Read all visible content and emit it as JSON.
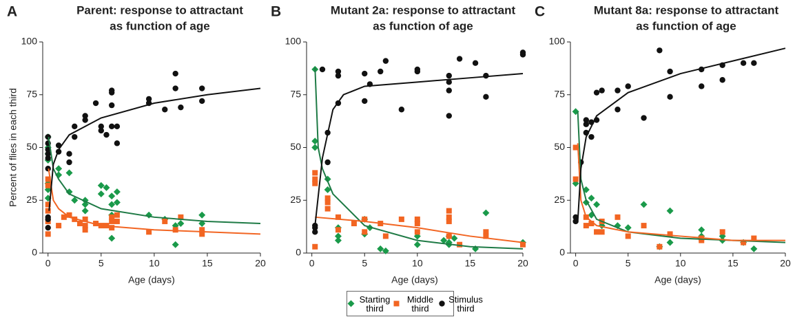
{
  "chart_data": [
    {
      "type": "scatter",
      "panel_label": "A",
      "title": [
        "Parent: response to attractant",
        "as function of age"
      ],
      "xlabel": "Age (days)",
      "ylabel": "Percent of flies in each third",
      "xlim": [
        -0.5,
        20
      ],
      "xticks": [
        0,
        5,
        10,
        15,
        20
      ],
      "ylim": [
        0,
        100
      ],
      "yticks": [
        0,
        25,
        50,
        75,
        100
      ],
      "series": [
        {
          "name": "Starting third",
          "color": "#1a9a4a",
          "marker": "diamond",
          "x": [
            0,
            0,
            0,
            0,
            0,
            0,
            0,
            1,
            1,
            2,
            2,
            2.5,
            3.5,
            3.5,
            3.5,
            5,
            5.5,
            5,
            6,
            6,
            6,
            6,
            6.5,
            6.5,
            9.5,
            11,
            12,
            12,
            12.5,
            14.5,
            14.5
          ],
          "values": [
            55,
            50,
            47,
            44,
            33,
            30,
            26,
            37,
            40,
            38,
            29,
            25,
            25,
            23,
            20,
            32,
            31,
            28,
            27,
            23,
            18,
            7,
            29,
            24,
            18,
            16,
            13,
            4,
            14,
            18,
            14
          ]
        },
        {
          "name": "Middle third",
          "color": "#f26522",
          "marker": "square",
          "x": [
            0,
            0,
            0,
            0,
            0,
            0,
            1,
            1.5,
            2,
            2.5,
            3,
            3.5,
            3.5,
            3.5,
            4.5,
            5,
            5.5,
            6,
            6,
            6,
            6.5,
            6.5,
            9.5,
            11,
            12,
            12.5,
            14.5,
            14.5
          ],
          "values": [
            35,
            32,
            23,
            20,
            15,
            9,
            13,
            17,
            18,
            16,
            14,
            16,
            13,
            11,
            14,
            13,
            13,
            17,
            15,
            12,
            18,
            15,
            10,
            15,
            11,
            17,
            11,
            9
          ]
        },
        {
          "name": "Stimulus third",
          "color": "#111111",
          "marker": "circle",
          "x": [
            0,
            0,
            0,
            0,
            0,
            0,
            0,
            0,
            0,
            1,
            1,
            2,
            2,
            2.5,
            2.5,
            3.5,
            3.5,
            4.5,
            5,
            5,
            5.5,
            6,
            6,
            6,
            6,
            6.5,
            6.5,
            9.5,
            9.5,
            11,
            12,
            12,
            12.5,
            14.5,
            14.5
          ],
          "values": [
            55,
            52,
            49,
            47,
            45,
            40,
            17,
            16,
            12,
            51,
            48,
            47,
            43,
            60,
            55,
            65,
            63,
            71,
            60,
            58,
            56,
            77,
            76,
            70,
            60,
            60,
            52,
            73,
            71,
            68,
            85,
            78,
            69,
            78,
            72
          ]
        }
      ],
      "fits": [
        {
          "color": "#1e7a45",
          "x": [
            0.05,
            0.5,
            1,
            2,
            5,
            10,
            15,
            20
          ],
          "values": [
            55,
            40,
            35,
            28,
            21,
            17,
            15,
            14
          ]
        },
        {
          "color": "#f26522",
          "x": [
            0.05,
            0.5,
            1,
            2,
            5,
            10,
            15,
            20
          ],
          "values": [
            40,
            25,
            21,
            17,
            13,
            11,
            10,
            9
          ]
        },
        {
          "color": "#111111",
          "x": [
            0.1,
            0.5,
            1,
            2,
            5,
            10,
            15,
            20
          ],
          "values": [
            20,
            42,
            49,
            56,
            64,
            71,
            75,
            78
          ]
        }
      ]
    },
    {
      "type": "scatter",
      "panel_label": "B",
      "title": [
        "Mutant 2a: response to attractant",
        "as function of age"
      ],
      "xlabel": "Age (days)",
      "xlim": [
        -0.5,
        20
      ],
      "xticks": [
        0,
        5,
        10,
        15,
        20
      ],
      "ylim": [
        0,
        100
      ],
      "yticks": [
        0,
        25,
        50,
        75,
        100
      ],
      "series": [
        {
          "name": "Starting third",
          "color": "#1a9a4a",
          "marker": "diamond",
          "x": [
            0.3,
            0.3,
            0.3,
            1.5,
            1.5,
            2.5,
            2.5,
            2.5,
            5,
            5,
            5.5,
            6.5,
            7,
            10,
            10,
            12.5,
            13,
            13,
            13,
            13.5,
            15.5,
            16.5,
            20
          ],
          "values": [
            87,
            53,
            50,
            35,
            30,
            12,
            8,
            6,
            16,
            9,
            12,
            2,
            1,
            8,
            4,
            6,
            8,
            5,
            4,
            7,
            2,
            19,
            5
          ]
        },
        {
          "name": "Middle third",
          "color": "#f26522",
          "marker": "square",
          "x": [
            0.3,
            0.3,
            0.3,
            0.3,
            1.5,
            1.5,
            1.5,
            2.5,
            2.5,
            4,
            5,
            5,
            6.5,
            7,
            8.5,
            10,
            10,
            10,
            13,
            13,
            13,
            13,
            14,
            16.5,
            16.5,
            20
          ],
          "values": [
            38,
            35,
            33,
            3,
            21,
            26,
            24,
            17,
            11,
            14,
            16,
            10,
            14,
            8,
            16,
            16,
            14,
            10,
            20,
            17,
            15,
            8,
            4,
            10,
            8,
            4
          ]
        },
        {
          "name": "Stimulus third",
          "color": "#111111",
          "marker": "circle",
          "x": [
            0.3,
            0.3,
            0.3,
            1,
            1.5,
            1.5,
            2.5,
            2.5,
            2.5,
            5,
            5,
            5.5,
            6.5,
            7,
            8.5,
            10,
            10,
            13,
            13,
            13,
            13,
            14,
            15.5,
            16.5,
            16.5,
            20,
            20
          ],
          "values": [
            13,
            12,
            10,
            87,
            57,
            43,
            86,
            84,
            71,
            85,
            72,
            80,
            86,
            91,
            68,
            87,
            86,
            84,
            81,
            77,
            65,
            92,
            90,
            84,
            74,
            95,
            94
          ]
        }
      ],
      "fits": [
        {
          "color": "#1e7a45",
          "x": [
            0.3,
            0.6,
            1,
            2,
            5,
            10,
            15,
            20
          ],
          "values": [
            88,
            50,
            40,
            28,
            13,
            6,
            3,
            2
          ]
        },
        {
          "color": "#f26522",
          "x": [
            0.3,
            5,
            10,
            15,
            20
          ],
          "values": [
            17,
            15,
            12,
            8,
            5
          ]
        },
        {
          "color": "#111111",
          "x": [
            0.3,
            1,
            2,
            3,
            5,
            10,
            15,
            20
          ],
          "values": [
            13,
            45,
            68,
            75,
            79,
            81,
            83,
            85
          ]
        }
      ]
    },
    {
      "type": "scatter",
      "panel_label": "C",
      "title": [
        "Mutant 8a: response to attractant",
        "as function of age"
      ],
      "xlabel": "Age (days)",
      "xlim": [
        -0.5,
        20
      ],
      "xticks": [
        0,
        5,
        10,
        15,
        20
      ],
      "ylim": [
        0,
        100
      ],
      "yticks": [
        0,
        25,
        50,
        75,
        100
      ],
      "series": [
        {
          "name": "Starting third",
          "color": "#1a9a4a",
          "marker": "diamond",
          "x": [
            0,
            0,
            1,
            1,
            1.5,
            1.5,
            2,
            2.5,
            4,
            5,
            6.5,
            8,
            9,
            9,
            12,
            12,
            14,
            14,
            16,
            17
          ],
          "values": [
            67,
            33,
            30,
            24,
            26,
            18,
            23,
            13,
            13,
            12,
            23,
            3,
            20,
            5,
            11,
            8,
            8,
            6,
            5,
            2
          ]
        },
        {
          "name": "Middle third",
          "color": "#f26522",
          "marker": "square",
          "x": [
            0,
            0,
            1,
            1,
            1.5,
            2,
            2.5,
            2.5,
            4,
            5,
            6.5,
            8,
            9,
            12,
            12,
            14,
            16,
            17
          ],
          "values": [
            50,
            35,
            13,
            17,
            14,
            10,
            15,
            10,
            17,
            8,
            13,
            3,
            9,
            6,
            7,
            10,
            5,
            7
          ]
        },
        {
          "name": "Stimulus third",
          "color": "#111111",
          "marker": "circle",
          "x": [
            0,
            0,
            0.5,
            1,
            1,
            1,
            1.5,
            1.5,
            2,
            2,
            2.5,
            4,
            4,
            5,
            6.5,
            8,
            9,
            9,
            12,
            12,
            14,
            14,
            16,
            17
          ],
          "values": [
            17,
            15,
            43,
            63,
            61,
            57,
            62,
            55,
            76,
            63,
            77,
            68,
            77,
            79,
            64,
            96,
            86,
            74,
            87,
            79,
            89,
            82,
            90,
            90
          ]
        }
      ],
      "fits": [
        {
          "color": "#1e7a45",
          "x": [
            0.2,
            0.5,
            1,
            2,
            5,
            10,
            15,
            20
          ],
          "values": [
            67,
            35,
            25,
            16,
            10,
            7,
            6,
            5
          ]
        },
        {
          "color": "#f26522",
          "x": [
            0.2,
            0.5,
            1,
            2,
            5,
            10,
            15,
            20
          ],
          "values": [
            52,
            25,
            17,
            13,
            10,
            8,
            6,
            6
          ]
        },
        {
          "color": "#111111",
          "x": [
            0.2,
            0.5,
            1,
            2,
            5,
            10,
            15,
            20
          ],
          "values": [
            15,
            40,
            55,
            65,
            76,
            85,
            91,
            97
          ]
        }
      ]
    }
  ]
}
